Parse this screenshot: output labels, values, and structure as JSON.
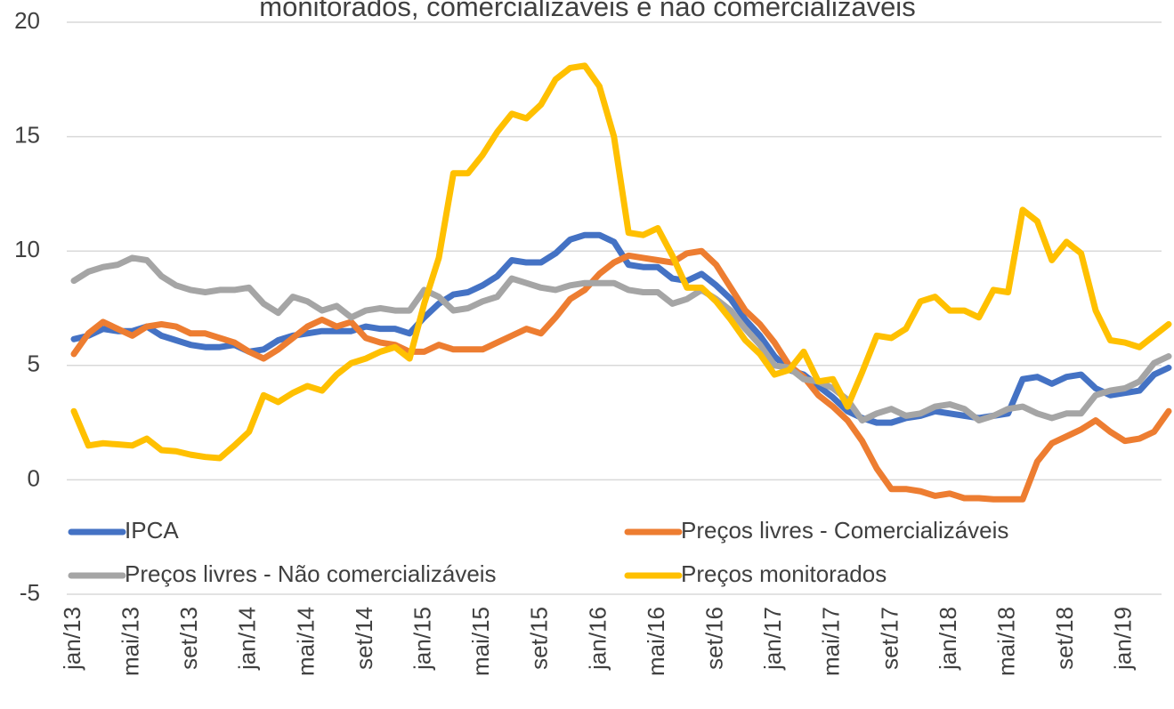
{
  "chart_data": {
    "type": "line",
    "title": "monitorados, comercializáveis e não comercializáveis",
    "categories": [
      "jan/13",
      null,
      null,
      null,
      "mai/13",
      null,
      null,
      null,
      "set/13",
      null,
      null,
      null,
      "jan/14",
      null,
      null,
      null,
      "mai/14",
      null,
      null,
      null,
      "set/14",
      null,
      null,
      null,
      "jan/15",
      null,
      null,
      null,
      "mai/15",
      null,
      null,
      null,
      "set/15",
      null,
      null,
      null,
      "jan/16",
      null,
      null,
      null,
      "mai/16",
      null,
      null,
      null,
      "set/16",
      null,
      null,
      null,
      "jan/17",
      null,
      null,
      null,
      "mai/17",
      null,
      null,
      null,
      "set/17",
      null,
      null,
      null,
      "jan/18",
      null,
      null,
      null,
      "mai/18",
      null,
      null,
      null,
      "set/18",
      null,
      null,
      null,
      "jan/19",
      null,
      null,
      null
    ],
    "series": [
      {
        "name": "IPCA",
        "color": "#4472c4",
        "values": [
          6.15,
          6.3,
          6.6,
          6.5,
          6.5,
          6.7,
          6.3,
          6.1,
          5.9,
          5.8,
          5.8,
          5.9,
          5.6,
          5.7,
          6.1,
          6.3,
          6.4,
          6.5,
          6.5,
          6.5,
          6.7,
          6.6,
          6.6,
          6.4,
          7.1,
          7.7,
          8.1,
          8.2,
          8.5,
          8.9,
          9.6,
          9.5,
          9.5,
          9.9,
          10.5,
          10.7,
          10.7,
          10.4,
          9.4,
          9.3,
          9.3,
          8.8,
          8.7,
          9.0,
          8.5,
          7.9,
          7.0,
          6.3,
          5.4,
          4.8,
          4.6,
          4.1,
          3.6,
          3.0,
          2.7,
          2.5,
          2.5,
          2.7,
          2.8,
          3.0,
          2.9,
          2.8,
          2.7,
          2.8,
          2.9,
          4.4,
          4.5,
          4.2,
          4.5,
          4.6,
          4.0,
          3.7,
          3.8,
          3.9,
          4.6,
          4.9
        ]
      },
      {
        "name": "Preços livres - Comercializáveis",
        "color": "#ed7d31",
        "values": [
          5.5,
          6.4,
          6.9,
          6.6,
          6.3,
          6.7,
          6.8,
          6.7,
          6.4,
          6.4,
          6.2,
          6.0,
          5.6,
          5.3,
          5.7,
          6.2,
          6.7,
          7.0,
          6.7,
          6.9,
          6.2,
          6.0,
          5.9,
          5.6,
          5.6,
          5.9,
          5.7,
          5.7,
          5.7,
          6.0,
          6.3,
          6.6,
          6.4,
          7.1,
          7.9,
          8.3,
          9.0,
          9.5,
          9.8,
          9.7,
          9.6,
          9.5,
          9.9,
          10.0,
          9.4,
          8.4,
          7.4,
          6.8,
          6.0,
          5.0,
          4.5,
          3.7,
          3.2,
          2.6,
          1.7,
          0.5,
          -0.4,
          -0.4,
          -0.5,
          -0.7,
          -0.6,
          -0.8,
          -0.8,
          -0.85,
          -0.85,
          -0.85,
          0.8,
          1.6,
          1.9,
          2.2,
          2.6,
          2.1,
          1.7,
          1.8,
          2.1,
          3.0
        ]
      },
      {
        "name": "Preços livres - Não comercializáveis",
        "color": "#a5a5a5",
        "values": [
          8.7,
          9.1,
          9.3,
          9.4,
          9.7,
          9.6,
          8.9,
          8.5,
          8.3,
          8.2,
          8.3,
          8.3,
          8.4,
          7.7,
          7.3,
          8.0,
          7.8,
          7.4,
          7.6,
          7.1,
          7.4,
          7.5,
          7.4,
          7.4,
          8.3,
          8.0,
          7.4,
          7.5,
          7.8,
          8.0,
          8.8,
          8.6,
          8.4,
          8.3,
          8.5,
          8.6,
          8.6,
          8.6,
          8.3,
          8.2,
          8.2,
          7.7,
          7.9,
          8.3,
          7.9,
          7.4,
          6.6,
          5.9,
          5.0,
          4.9,
          4.4,
          4.3,
          4.0,
          3.5,
          2.6,
          2.9,
          3.1,
          2.8,
          2.9,
          3.2,
          3.3,
          3.1,
          2.6,
          2.8,
          3.1,
          3.2,
          2.9,
          2.7,
          2.9,
          2.9,
          3.7,
          3.9,
          4.0,
          4.3,
          5.1,
          5.4
        ]
      },
      {
        "name": "Preços monitorados",
        "color": "#ffc000",
        "values": [
          3.0,
          1.5,
          1.6,
          1.55,
          1.5,
          1.8,
          1.3,
          1.25,
          1.1,
          1.0,
          0.95,
          1.5,
          2.1,
          3.7,
          3.4,
          3.8,
          4.1,
          3.9,
          4.6,
          5.1,
          5.3,
          5.6,
          5.8,
          5.3,
          7.7,
          9.7,
          13.4,
          13.4,
          14.2,
          15.2,
          16.0,
          15.8,
          16.4,
          17.5,
          18.0,
          18.1,
          17.2,
          15.0,
          10.8,
          10.7,
          11.0,
          9.8,
          8.4,
          8.4,
          7.8,
          7.0,
          6.1,
          5.5,
          4.6,
          4.8,
          5.6,
          4.3,
          4.4,
          3.2,
          4.7,
          6.3,
          6.2,
          6.6,
          7.8,
          8.0,
          7.4,
          7.4,
          7.1,
          8.3,
          8.2,
          11.8,
          11.3,
          9.6,
          10.4,
          9.9,
          7.4,
          6.1,
          6.0,
          5.8,
          6.3,
          6.8
        ]
      }
    ],
    "ylim": [
      -5,
      20
    ],
    "yticks": [
      -5,
      0,
      5,
      10,
      15,
      20
    ],
    "grid": true
  }
}
